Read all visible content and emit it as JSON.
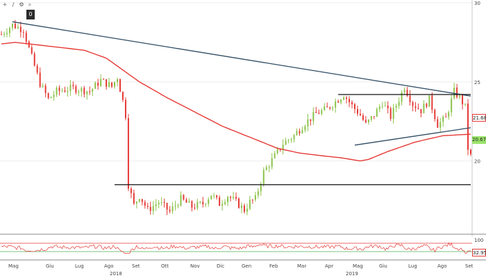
{
  "toolbar": {
    "icons": [
      "crosshair-icon",
      "pencil-icon",
      "gear-icon",
      "zoom-icon"
    ],
    "glyphs": [
      "+",
      "∕",
      "⚙",
      "⌕"
    ],
    "dark_label": "0"
  },
  "badges": {
    "red_value": "21.6893",
    "green_value": "20.67",
    "rsi_value": "32.9553"
  },
  "colors": {
    "up_candle": "#8bc34a",
    "down_candle": "#e53935",
    "moving_average": "#e53935",
    "trendline": "#2e4a62",
    "horizontal_line": "#111111",
    "rsi_line": "#e53935",
    "rsi_upper": "#e53935",
    "rsi_lower": "#4caf50"
  },
  "chart_data": {
    "type": "line",
    "ylim": [
      15.5,
      30
    ],
    "y_ticks": [
      20,
      25,
      30
    ],
    "x_labels": [
      "Mag",
      "Giu",
      "Lug",
      "Ago",
      "Set",
      "Ott",
      "Nov",
      "Dic",
      "Gen",
      "Feb",
      "Mar",
      "Apr",
      "Mag",
      "Giu",
      "Lug",
      "Ago",
      "Set"
    ],
    "year_labels": [
      "2018",
      "2019"
    ],
    "price_anchors": [
      [
        0,
        28.0
      ],
      [
        4,
        28.6
      ],
      [
        8,
        28.3
      ],
      [
        10,
        27.1
      ],
      [
        14,
        24.9
      ],
      [
        17,
        23.9
      ],
      [
        20,
        24.4
      ],
      [
        26,
        24.6
      ],
      [
        32,
        24.4
      ],
      [
        36,
        25.1
      ],
      [
        40,
        24.7
      ],
      [
        42,
        25.3
      ],
      [
        44,
        23.8
      ],
      [
        45,
        22.9
      ],
      [
        46,
        18.5
      ],
      [
        48,
        17.2
      ],
      [
        50,
        17.8
      ],
      [
        53,
        16.9
      ],
      [
        57,
        17.4
      ],
      [
        61,
        16.8
      ],
      [
        65,
        17.6
      ],
      [
        69,
        17.1
      ],
      [
        73,
        17.3
      ],
      [
        76,
        17.9
      ],
      [
        79,
        17.3
      ],
      [
        82,
        17.8
      ],
      [
        85,
        17.4
      ],
      [
        88,
        16.9
      ],
      [
        90,
        17.4
      ],
      [
        92,
        17.6
      ],
      [
        95,
        19.3
      ],
      [
        99,
        20.3
      ],
      [
        102,
        21.1
      ],
      [
        106,
        21.6
      ],
      [
        110,
        22.4
      ],
      [
        114,
        23.0
      ],
      [
        118,
        23.3
      ],
      [
        122,
        23.9
      ],
      [
        124,
        24.2
      ],
      [
        127,
        23.5
      ],
      [
        130,
        22.9
      ],
      [
        132,
        22.3
      ],
      [
        135,
        22.9
      ],
      [
        138,
        23.7
      ],
      [
        141,
        22.8
      ],
      [
        144,
        23.9
      ],
      [
        146,
        24.7
      ],
      [
        149,
        23.6
      ],
      [
        152,
        23.2
      ],
      [
        155,
        23.9
      ],
      [
        158,
        22.3
      ],
      [
        161,
        22.7
      ],
      [
        164,
        24.4
      ],
      [
        166,
        24.0
      ],
      [
        168,
        23.4
      ],
      [
        169,
        20.8
      ],
      [
        170,
        20.3
      ]
    ],
    "moving_average_anchors": [
      [
        0,
        27.4
      ],
      [
        5,
        27.5
      ],
      [
        10,
        27.4
      ],
      [
        20,
        27.2
      ],
      [
        30,
        27.0
      ],
      [
        38,
        26.5
      ],
      [
        50,
        25.0
      ],
      [
        60,
        24.0
      ],
      [
        70,
        23.1
      ],
      [
        80,
        22.2
      ],
      [
        90,
        21.5
      ],
      [
        100,
        20.8
      ],
      [
        108,
        20.5
      ],
      [
        115,
        20.35
      ],
      [
        123,
        20.2
      ],
      [
        130,
        20.0
      ],
      [
        133,
        20.1
      ],
      [
        140,
        20.6
      ],
      [
        150,
        21.2
      ],
      [
        160,
        21.6
      ],
      [
        170,
        21.69
      ]
    ],
    "trendline": {
      "start": [
        4,
        28.8
      ],
      "end": [
        170,
        24.1
      ]
    },
    "support_line": {
      "start": [
        128,
        21.0
      ],
      "end": [
        170,
        22.1
      ]
    },
    "horizontal_lines": [
      {
        "y": 24.2,
        "from": 122,
        "to": 170
      },
      {
        "y": 18.5,
        "from": 41,
        "to": 170
      }
    ],
    "rsi": {
      "ylim": [
        0,
        100
      ],
      "upper": 70,
      "lower": 30,
      "label": "100",
      "latest": 32.9553
    }
  }
}
